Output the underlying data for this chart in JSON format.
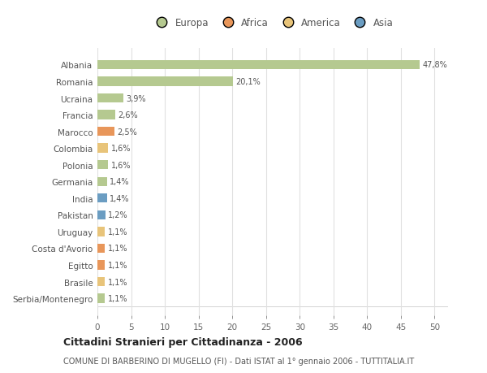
{
  "categories": [
    "Serbia/Montenegro",
    "Brasile",
    "Egitto",
    "Costa d'Avorio",
    "Uruguay",
    "Pakistan",
    "India",
    "Germania",
    "Polonia",
    "Colombia",
    "Marocco",
    "Francia",
    "Ucraina",
    "Romania",
    "Albania"
  ],
  "values": [
    1.1,
    1.1,
    1.1,
    1.1,
    1.1,
    1.2,
    1.4,
    1.4,
    1.6,
    1.6,
    2.5,
    2.6,
    3.9,
    20.1,
    47.8
  ],
  "labels": [
    "1,1%",
    "1,1%",
    "1,1%",
    "1,1%",
    "1,1%",
    "1,2%",
    "1,4%",
    "1,4%",
    "1,6%",
    "1,6%",
    "2,5%",
    "2,6%",
    "3,9%",
    "20,1%",
    "47,8%"
  ],
  "colors": [
    "#b5c990",
    "#e8c47a",
    "#e8965a",
    "#e8965a",
    "#e8c47a",
    "#6b9dc2",
    "#6b9dc2",
    "#b5c990",
    "#b5c990",
    "#e8c47a",
    "#e8965a",
    "#b5c990",
    "#b5c990",
    "#b5c990",
    "#b5c990"
  ],
  "legend_labels": [
    "Europa",
    "Africa",
    "America",
    "Asia"
  ],
  "legend_colors": [
    "#b5c990",
    "#e8965a",
    "#e8c47a",
    "#6b9dc2"
  ],
  "title": "Cittadini Stranieri per Cittadinanza - 2006",
  "subtitle": "COMUNE DI BARBERINO DI MUGELLO (FI) - Dati ISTAT al 1° gennaio 2006 - TUTTITALIA.IT",
  "xlim": [
    0,
    52
  ],
  "xticks": [
    0,
    5,
    10,
    15,
    20,
    25,
    30,
    35,
    40,
    45,
    50
  ],
  "background_color": "#ffffff",
  "grid_color": "#e0e0e0"
}
